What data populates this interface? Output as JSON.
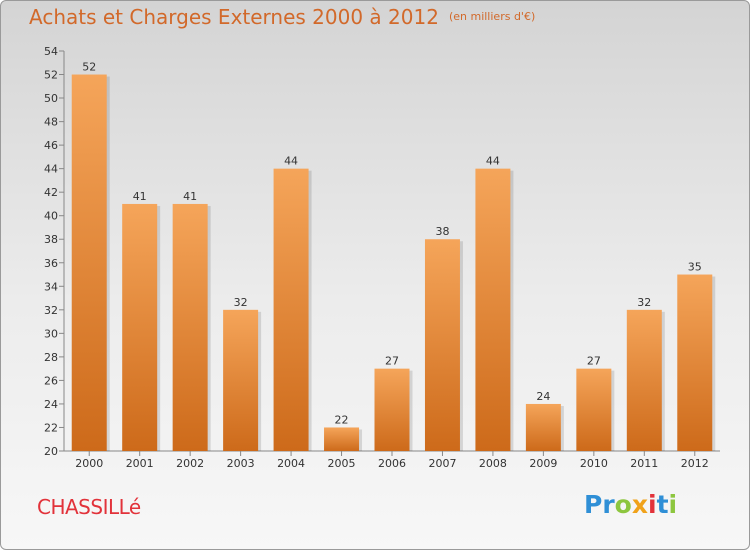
{
  "title": "Achats et Charges Externes 2000 à 2012",
  "unit": "(en milliers d'€)",
  "commune": "CHASSILLé",
  "logo": {
    "letters": [
      "P",
      "r",
      "o",
      "x",
      "i",
      "t",
      "i"
    ],
    "colors": [
      "#2f8fd6",
      "#2f8fd6",
      "#8dc63f",
      "#f0a21a",
      "#e2323a",
      "#2f8fd6",
      "#8dc63f"
    ]
  },
  "colors": {
    "title": "#d2692a",
    "commune": "#e2323a",
    "bar_top": "#f5a55a",
    "bar_bottom": "#cd6a1a"
  },
  "chart_data": {
    "type": "bar",
    "categories": [
      "2000",
      "2001",
      "2002",
      "2003",
      "2004",
      "2005",
      "2006",
      "2007",
      "2008",
      "2009",
      "2010",
      "2011",
      "2012"
    ],
    "values": [
      52,
      41,
      41,
      32,
      44,
      22,
      27,
      38,
      44,
      24,
      27,
      32,
      35
    ],
    "ylim": [
      20,
      54
    ],
    "yticks": [
      20,
      22,
      24,
      26,
      28,
      30,
      32,
      34,
      36,
      38,
      40,
      42,
      44,
      46,
      48,
      50,
      52,
      54
    ],
    "grid": false,
    "data_labels": true
  }
}
